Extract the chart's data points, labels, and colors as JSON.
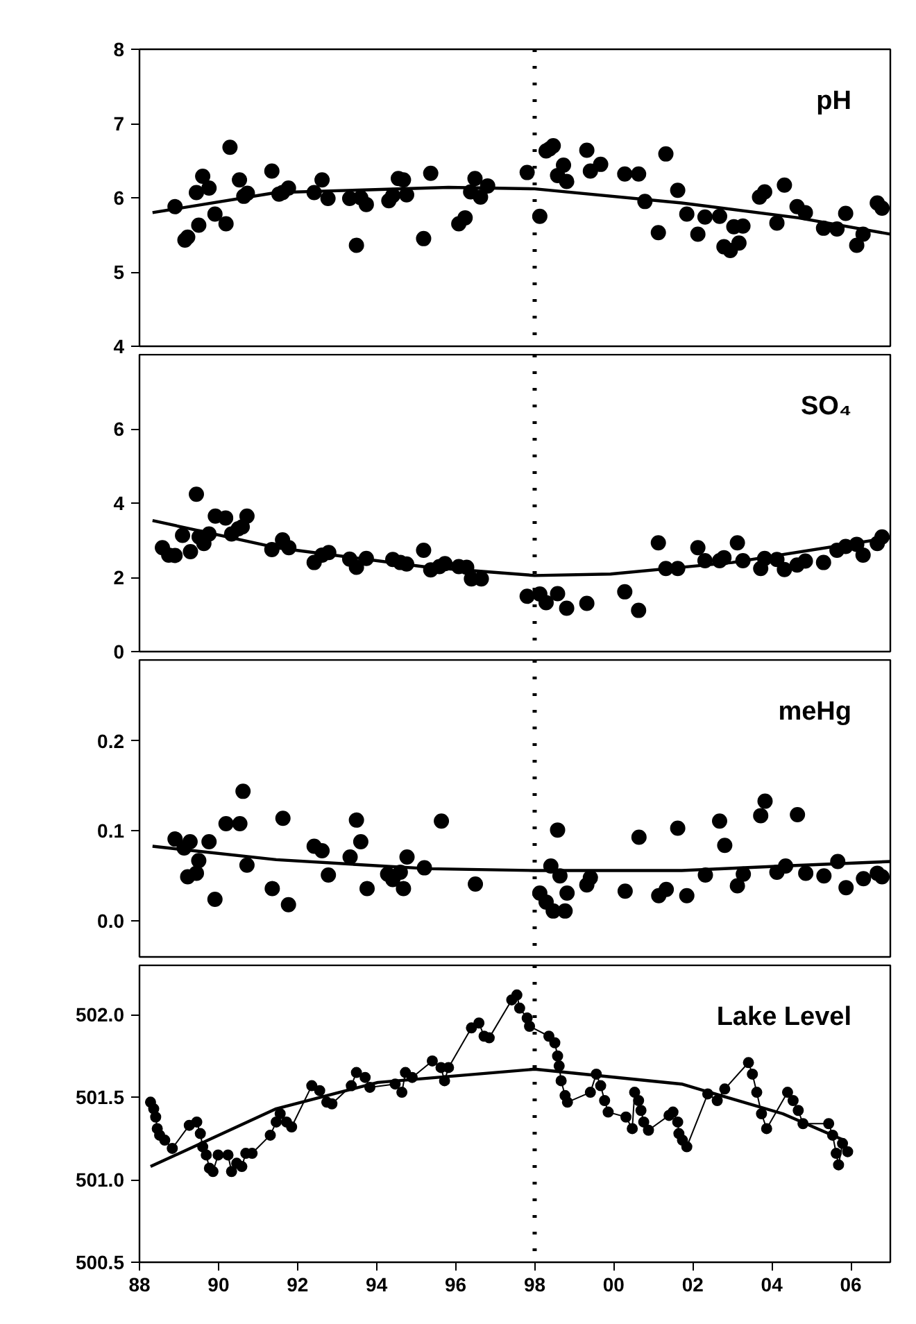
{
  "chart_data": [
    {
      "type": "scatter",
      "title": "pH",
      "xlim": [
        1988,
        2007
      ],
      "ylim": [
        4,
        8
      ],
      "yticks": [
        4,
        5,
        6,
        7,
        8
      ],
      "tick_labels": "y",
      "marker": "circle",
      "ref_lines": [
        {
          "axis": "x",
          "value": 1998,
          "line_style": "dotted",
          "color": "#000000"
        }
      ],
      "series": [
        {
          "color": "#000000",
          "x": [
            1988.9,
            1989.15,
            1989.22,
            1989.44,
            1989.5,
            1989.6,
            1989.76,
            1989.91,
            1990.19,
            1990.29,
            1990.53,
            1990.64,
            1990.73,
            1991.35,
            1991.53,
            1991.62,
            1991.77,
            1992.42,
            1992.62,
            1992.77,
            1993.32,
            1993.49,
            1993.6,
            1993.74,
            1994.31,
            1994.41,
            1994.55,
            1994.68,
            1994.76,
            1995.19,
            1995.37,
            1996.08,
            1996.24,
            1996.38,
            1996.49,
            1996.63,
            1996.81,
            1997.81,
            1998.13,
            1998.29,
            1998.38,
            1998.47,
            1998.58,
            1998.73,
            1998.81,
            1999.32,
            1999.41,
            1999.67,
            2000.28,
            2000.63,
            2000.79,
            2001.13,
            2001.32,
            2001.62,
            2001.85,
            2002.13,
            2002.31,
            2002.68,
            2002.79,
            2002.95,
            2003.04,
            2003.17,
            2003.27,
            2003.69,
            2003.82,
            2004.13,
            2004.32,
            2004.64,
            2004.85,
            2005.31,
            2005.65,
            2005.87,
            2006.15,
            2006.31,
            2006.67,
            2006.79
          ],
          "values": [
            5.88,
            5.43,
            5.47,
            6.07,
            5.63,
            6.29,
            6.13,
            5.78,
            5.65,
            6.68,
            6.24,
            6.02,
            6.06,
            6.36,
            6.05,
            6.07,
            6.13,
            6.07,
            6.24,
            5.99,
            5.99,
            5.36,
            6.0,
            5.91,
            5.96,
            6.03,
            6.26,
            6.24,
            6.04,
            5.45,
            6.33,
            5.65,
            5.73,
            6.08,
            6.26,
            6.01,
            6.16,
            6.34,
            5.75,
            6.63,
            6.66,
            6.7,
            6.3,
            6.44,
            6.22,
            6.64,
            6.36,
            6.45,
            6.32,
            6.32,
            5.95,
            5.53,
            6.59,
            6.1,
            5.78,
            5.51,
            5.74,
            5.75,
            5.34,
            5.29,
            5.61,
            5.39,
            5.62,
            6.01,
            6.08,
            5.66,
            6.17,
            5.88,
            5.8,
            5.59,
            5.58,
            5.79,
            5.36,
            5.51,
            5.93,
            5.86
          ]
        },
        {
          "type": "line",
          "marker": "none",
          "line_style": "solid",
          "color": "#000000",
          "x": [
            1988.33,
            1991.46,
            1995.82,
            1998.0,
            2001.72,
            2004.67,
            2007.0
          ],
          "values": [
            5.8,
            6.07,
            6.14,
            6.12,
            5.93,
            5.73,
            5.51
          ]
        }
      ]
    },
    {
      "type": "scatter",
      "title": "SO₄",
      "xlim": [
        1988,
        2007
      ],
      "ylim": [
        0,
        8
      ],
      "yticks": [
        0,
        2,
        4,
        6
      ],
      "tick_labels": "y",
      "marker": "circle",
      "ref_lines": [
        {
          "axis": "x",
          "value": 1998,
          "line_style": "dotted",
          "color": "#000000"
        }
      ],
      "series": [
        {
          "color": "#000000",
          "x": [
            1988.58,
            1988.74,
            1988.9,
            1989.09,
            1989.29,
            1989.44,
            1989.51,
            1989.63,
            1989.76,
            1989.92,
            1990.18,
            1990.33,
            1990.5,
            1990.6,
            1990.72,
            1991.35,
            1991.62,
            1991.78,
            1992.42,
            1992.62,
            1992.79,
            1993.32,
            1993.49,
            1993.74,
            1994.41,
            1994.6,
            1994.76,
            1995.19,
            1995.37,
            1995.59,
            1995.73,
            1996.08,
            1996.28,
            1996.4,
            1996.65,
            1997.81,
            1998.13,
            1998.29,
            1998.58,
            1998.81,
            1999.32,
            2000.28,
            2000.63,
            2001.13,
            2001.32,
            2001.62,
            2002.13,
            2002.31,
            2002.68,
            2002.79,
            2003.13,
            2003.27,
            2003.72,
            2003.82,
            2004.13,
            2004.32,
            2004.64,
            2004.85,
            2005.31,
            2005.65,
            2005.87,
            2006.15,
            2006.31,
            2006.67,
            2006.79
          ],
          "values": [
            2.8,
            2.6,
            2.59,
            3.13,
            2.69,
            4.24,
            3.09,
            2.91,
            3.17,
            3.65,
            3.6,
            3.17,
            3.31,
            3.36,
            3.65,
            2.75,
            3.01,
            2.8,
            2.4,
            2.6,
            2.67,
            2.49,
            2.27,
            2.51,
            2.48,
            2.4,
            2.36,
            2.73,
            2.2,
            2.29,
            2.37,
            2.29,
            2.27,
            1.96,
            1.96,
            1.49,
            1.55,
            1.32,
            1.56,
            1.17,
            1.3,
            1.61,
            1.11,
            2.93,
            2.24,
            2.24,
            2.8,
            2.45,
            2.45,
            2.53,
            2.93,
            2.45,
            2.24,
            2.51,
            2.48,
            2.21,
            2.33,
            2.44,
            2.4,
            2.73,
            2.83,
            2.89,
            2.6,
            2.91,
            3.09
          ]
        },
        {
          "type": "line",
          "marker": "none",
          "line_style": "solid",
          "color": "#000000",
          "x": [
            1988.33,
            1991.46,
            1995.31,
            1998.0,
            1999.92,
            2003.0,
            2007.0
          ],
          "values": [
            3.53,
            2.8,
            2.27,
            2.05,
            2.09,
            2.4,
            3.07
          ]
        }
      ]
    },
    {
      "type": "scatter",
      "title": "meHg",
      "xlim": [
        1988,
        2007
      ],
      "ylim": [
        -0.04,
        0.29
      ],
      "yticks": [
        {
          "value": 0,
          "label": "0.0"
        },
        0.1,
        0.2
      ],
      "tick_labels": "y",
      "marker": "circle",
      "ref_lines": [
        {
          "axis": "x",
          "value": 1998,
          "line_style": "dotted",
          "color": "#000000"
        }
      ],
      "series": [
        {
          "color": "#000000",
          "x": [
            1988.9,
            1989.13,
            1989.28,
            1989.22,
            1989.44,
            1989.5,
            1989.76,
            1989.91,
            1990.19,
            1990.54,
            1990.62,
            1990.72,
            1991.36,
            1991.63,
            1991.77,
            1992.42,
            1992.62,
            1992.78,
            1993.33,
            1993.49,
            1993.6,
            1993.76,
            1994.28,
            1994.41,
            1994.6,
            1994.68,
            1994.77,
            1995.21,
            1995.64,
            1996.5,
            1998.13,
            1998.41,
            1998.29,
            1998.47,
            1998.58,
            1998.64,
            1998.77,
            1998.82,
            1999.32,
            1999.41,
            2000.29,
            2000.64,
            2001.14,
            2001.33,
            2001.62,
            2001.85,
            2002.32,
            2002.68,
            2002.81,
            2003.13,
            2003.28,
            2003.72,
            2003.83,
            2004.13,
            2004.35,
            2004.65,
            2004.86,
            2005.32,
            2005.67,
            2005.88,
            2006.32,
            2006.67,
            2006.79
          ],
          "values": [
            0.091,
            0.081,
            0.088,
            0.049,
            0.053,
            0.067,
            0.088,
            0.024,
            0.108,
            0.108,
            0.144,
            0.062,
            0.036,
            0.114,
            0.018,
            0.083,
            0.078,
            0.051,
            0.071,
            0.112,
            0.088,
            0.036,
            0.052,
            0.046,
            0.054,
            0.036,
            0.071,
            0.059,
            0.111,
            0.041,
            0.031,
            0.061,
            0.021,
            0.011,
            0.101,
            0.05,
            0.011,
            0.031,
            0.04,
            0.048,
            0.033,
            0.093,
            0.028,
            0.035,
            0.103,
            0.028,
            0.051,
            0.111,
            0.084,
            0.039,
            0.052,
            0.117,
            0.133,
            0.054,
            0.061,
            0.118,
            0.053,
            0.05,
            0.066,
            0.037,
            0.047,
            0.053,
            0.049
          ]
        },
        {
          "type": "line",
          "marker": "none",
          "line_style": "solid",
          "color": "#000000",
          "x": [
            1988.33,
            1991.46,
            1995.31,
            1998.0,
            2001.72,
            2004.28,
            2007.0
          ],
          "values": [
            0.083,
            0.068,
            0.058,
            0.056,
            0.056,
            0.061,
            0.066
          ]
        }
      ]
    },
    {
      "type": "line",
      "title": "Lake Level",
      "xlim": [
        1988,
        2007
      ],
      "ylim": [
        500.5,
        502.3
      ],
      "yticks": [
        500.5,
        {
          "value": 501,
          "label": "501.0"
        },
        501.5,
        {
          "value": 502,
          "label": "502.0"
        }
      ],
      "xticks": [
        {
          "value": 1988,
          "label": "88"
        },
        {
          "value": 1990,
          "label": "90"
        },
        {
          "value": 1992,
          "label": "92"
        },
        {
          "value": 1994,
          "label": "94"
        },
        {
          "value": 1996,
          "label": "96"
        },
        {
          "value": 1998,
          "label": "98"
        },
        {
          "value": 2000,
          "label": "00"
        },
        {
          "value": 2002,
          "label": "02"
        },
        {
          "value": 2004,
          "label": "04"
        },
        {
          "value": 2006,
          "label": "06"
        }
      ],
      "marker": "circle",
      "line_style": "solid",
      "ref_lines": [
        {
          "axis": "x",
          "value": 1998,
          "line_style": "dotted",
          "color": "#000000"
        }
      ],
      "series": [
        {
          "marker": "circle",
          "color": "#000000",
          "x": [
            1988.28,
            1988.36,
            1988.41,
            1988.45,
            1988.51,
            1988.64,
            1988.83,
            1989.26,
            1989.45,
            1989.54,
            1989.6,
            1989.69,
            1989.77,
            1989.86,
            1989.99,
            1990.24,
            1990.33,
            1990.46,
            1990.59,
            1990.69,
            1990.85,
            1991.31,
            1991.46,
            1991.56,
            1991.72,
            1991.85,
            1992.36,
            1992.56,
            1992.74,
            1992.87,
            1993.36,
            1993.49,
            1993.71,
            1993.83,
            1994.47,
            1994.64,
            1994.73,
            1994.9,
            1995.41,
            1995.63,
            1995.72,
            1995.82,
            1996.4,
            1996.59,
            1996.72,
            1996.85,
            1997.42,
            1997.55,
            1997.62,
            1997.81,
            1997.87,
            1998.36,
            1998.51,
            1998.58,
            1998.62,
            1998.67,
            1998.77,
            1998.83,
            1999.41,
            1999.56,
            1999.67,
            1999.77,
            1999.86,
            2000.31,
            2000.47,
            2000.53,
            2000.63,
            2000.69,
            2000.76,
            2000.88,
            2001.4,
            2001.5,
            2001.62,
            2001.65,
            2001.74,
            2001.85,
            2002.38,
            2002.62,
            2002.81,
            2003.41,
            2003.51,
            2003.62,
            2003.74,
            2003.87,
            2004.4,
            2004.54,
            2004.67,
            2004.79,
            2005.44,
            2005.54,
            2005.63,
            2005.69,
            2005.79,
            2005.92
          ],
          "values": [
            501.47,
            501.43,
            501.38,
            501.31,
            501.27,
            501.24,
            501.19,
            501.33,
            501.35,
            501.28,
            501.2,
            501.15,
            501.07,
            501.05,
            501.15,
            501.15,
            501.05,
            501.1,
            501.08,
            501.16,
            501.16,
            501.27,
            501.35,
            501.4,
            501.35,
            501.32,
            501.57,
            501.54,
            501.47,
            501.46,
            501.57,
            501.65,
            501.62,
            501.56,
            501.58,
            501.53,
            501.65,
            501.62,
            501.72,
            501.68,
            501.6,
            501.68,
            501.92,
            501.95,
            501.87,
            501.86,
            502.09,
            502.12,
            502.04,
            501.98,
            501.93,
            501.87,
            501.83,
            501.75,
            501.69,
            501.6,
            501.51,
            501.47,
            501.53,
            501.64,
            501.57,
            501.48,
            501.41,
            501.38,
            501.31,
            501.53,
            501.48,
            501.42,
            501.35,
            501.3,
            501.39,
            501.41,
            501.35,
            501.28,
            501.24,
            501.2,
            501.52,
            501.48,
            501.55,
            501.71,
            501.64,
            501.53,
            501.4,
            501.31,
            501.53,
            501.48,
            501.42,
            501.34,
            501.34,
            501.27,
            501.16,
            501.09,
            501.22,
            501.17
          ]
        },
        {
          "marker": "none",
          "color": "#000000",
          "x": [
            1988.28,
            1991.46,
            1994.03,
            1998.0,
            2001.72,
            2004.28,
            2005.82
          ],
          "values": [
            501.08,
            501.43,
            501.59,
            501.67,
            501.58,
            501.4,
            501.24
          ]
        }
      ]
    }
  ]
}
